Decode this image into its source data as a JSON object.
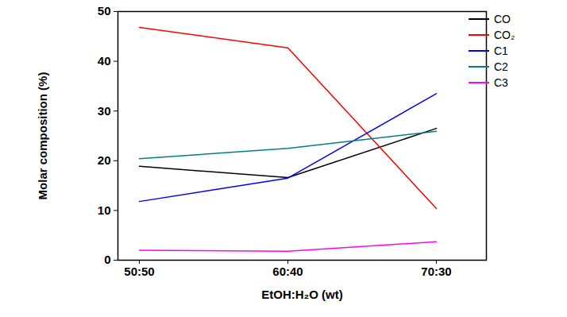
{
  "chart_data": {
    "type": "line",
    "x_label": "EtOH:H₂O (wt)",
    "y_label": "Molar composition (%)",
    "categories": [
      "50:50",
      "60:40",
      "70:30"
    ],
    "series": [
      {
        "name": "CO",
        "color": "#000000",
        "values": [
          18.9,
          16.6,
          26.5
        ]
      },
      {
        "name": "CO₂",
        "color": "#ff0000",
        "values": [
          46.8,
          42.7,
          10.4
        ]
      },
      {
        "name": "C1",
        "color": "#0000ff",
        "values": [
          11.8,
          16.5,
          33.5
        ]
      },
      {
        "name": "C2",
        "color": "#008080",
        "values": [
          20.4,
          22.5,
          25.9
        ]
      },
      {
        "name": "C3",
        "color": "#ff00ff",
        "values": [
          2.0,
          1.8,
          3.7
        ]
      }
    ],
    "ylim": [
      0,
      50
    ],
    "yticks": [
      0,
      10,
      20,
      30,
      40,
      50
    ],
    "legend": "top-right"
  }
}
